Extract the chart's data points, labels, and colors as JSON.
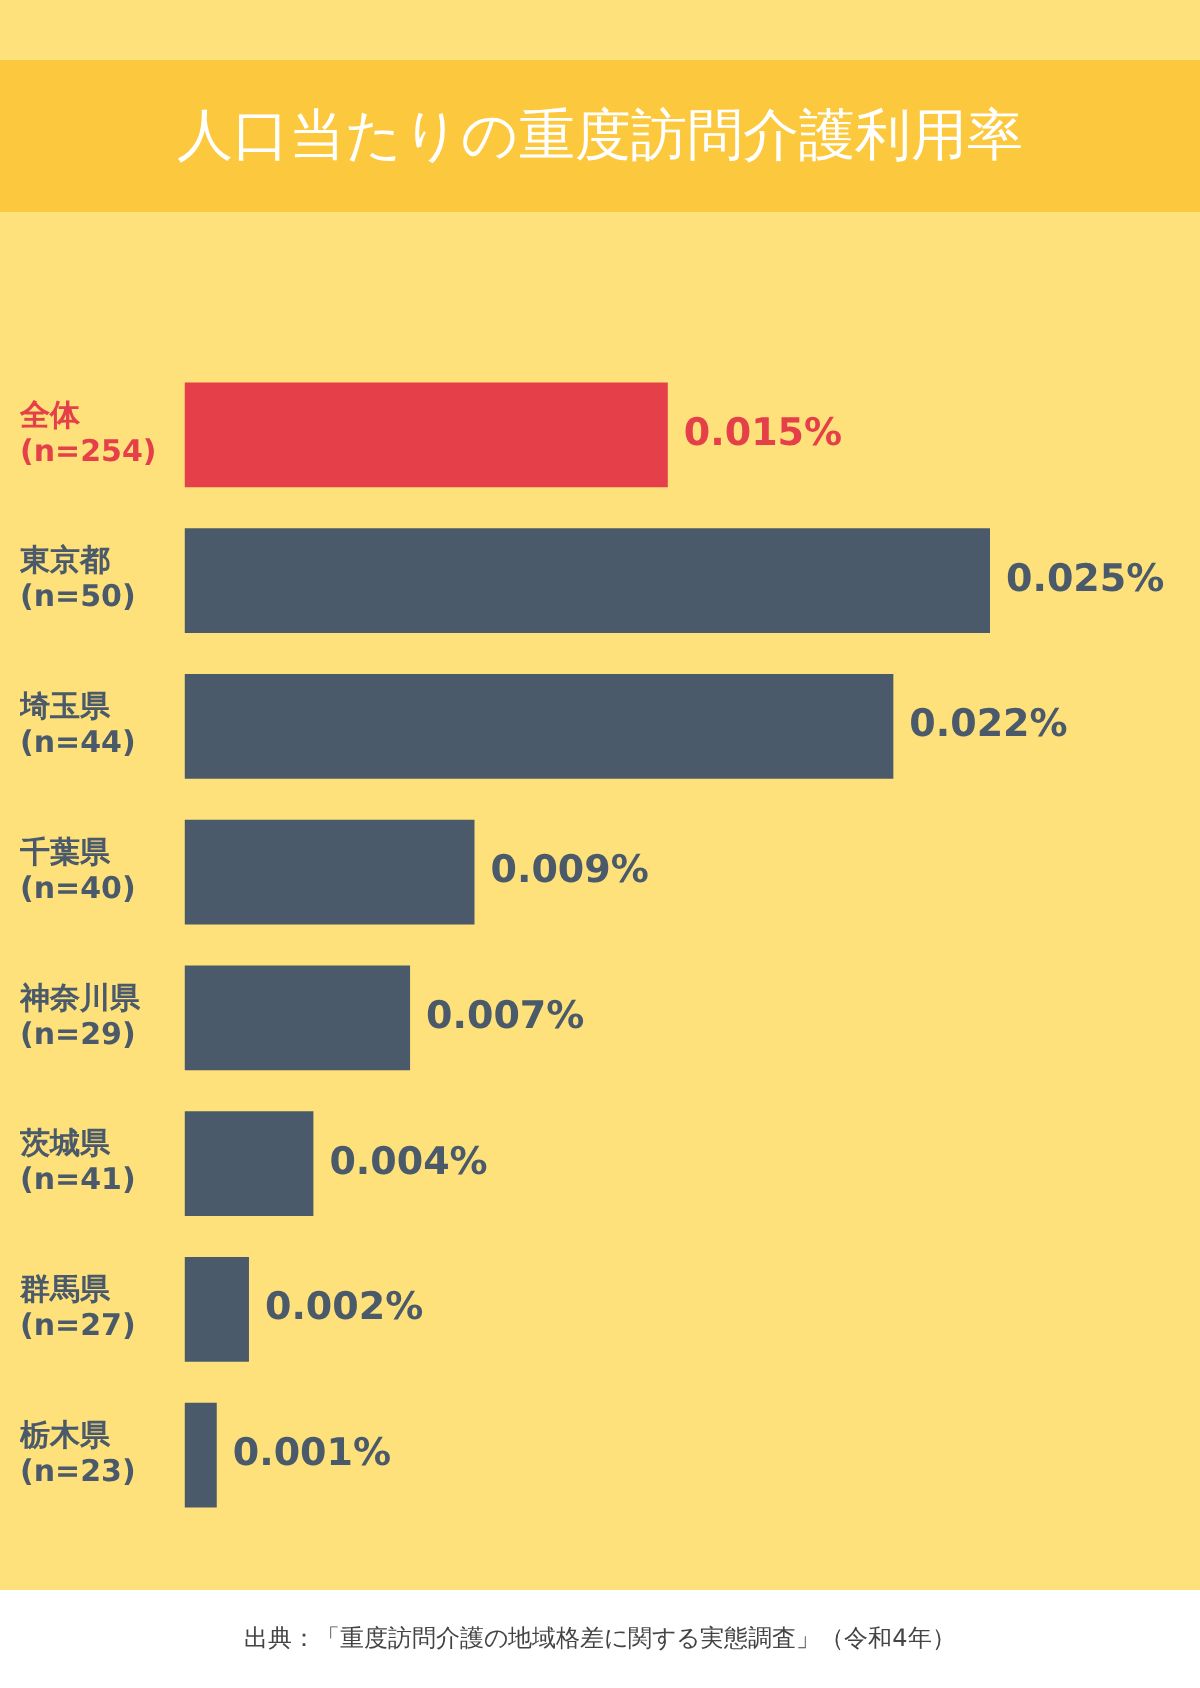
{
  "chart_data": {
    "type": "bar",
    "orientation": "horizontal",
    "title": "人口当たりの重度訪問介護利用率",
    "categories": [
      "全体\n(n=254)",
      "東京都\n(n=50)",
      "埼玉県\n(n=44)",
      "千葉県\n(n=40)",
      "神奈川県\n(n=29)",
      "茨城県\n(n=41)",
      "群馬県\n(n=27)",
      "栃木県\n(n=23)"
    ],
    "values": [
      0.015,
      0.025,
      0.022,
      0.009,
      0.007,
      0.004,
      0.002,
      0.001
    ],
    "value_labels": [
      "0.015%",
      "0.025%",
      "0.022%",
      "0.009%",
      "0.007%",
      "0.004%",
      "0.002%",
      "0.001%"
    ],
    "colors": [
      "#e5404a",
      "#4a5a6a",
      "#4a5a6a",
      "#4a5a6a",
      "#4a5a6a",
      "#4a5a6a",
      "#4a5a6a",
      "#4a5a6a"
    ],
    "legend": false,
    "annotations": [
      "出典：「重度訪問介護の地域格差に関する実態調査」（令和4年）"
    ]
  }
}
